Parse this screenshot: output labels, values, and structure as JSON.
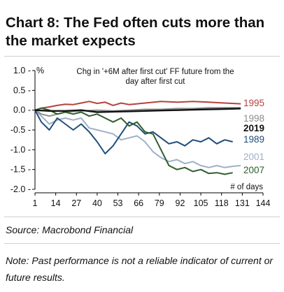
{
  "title": "Chart 8: The Fed often cuts more than the market expects",
  "source": "Source: Macrobond Financial",
  "note": "Note: Past performance is not a reliable indicator of current or future results.",
  "chart_data": {
    "type": "line",
    "ylabel": "%",
    "annotation": "Chg in '+6M after first cut' FF future from the day after first cut",
    "xlabel": "# of days",
    "x_ticks": [
      1,
      14,
      27,
      40,
      53,
      66,
      79,
      92,
      105,
      118,
      131,
      144
    ],
    "y_ticks": [
      1.0,
      0.5,
      0.0,
      -0.5,
      -1.0,
      -1.5,
      -2.0
    ],
    "xlim": [
      1,
      144
    ],
    "ylim": [
      -2.0,
      1.0
    ],
    "grid": false,
    "legend": "labels at line ends (right)",
    "series": [
      {
        "name": "1995",
        "color": "#b5413c",
        "x": [
          1,
          5,
          10,
          15,
          20,
          25,
          30,
          35,
          40,
          45,
          50,
          55,
          60,
          70,
          80,
          90,
          100,
          110,
          120,
          130
        ],
        "y": [
          0.0,
          0.05,
          0.08,
          0.12,
          0.15,
          0.14,
          0.18,
          0.22,
          0.17,
          0.2,
          0.12,
          0.18,
          0.14,
          0.18,
          0.22,
          0.2,
          0.22,
          0.2,
          0.18,
          0.16
        ]
      },
      {
        "name": "1998",
        "color": "#8c8c8c",
        "x": [
          1,
          5,
          10,
          15,
          20,
          30,
          40,
          50,
          60,
          70,
          80,
          90,
          100,
          110,
          120,
          130
        ],
        "y": [
          0.0,
          -0.1,
          -0.15,
          -0.1,
          -0.05,
          -0.02,
          0.0,
          -0.02,
          0.0,
          0.02,
          0.02,
          0.04,
          0.04,
          0.06,
          0.06,
          0.06
        ]
      },
      {
        "name": "2019",
        "color": "#111111",
        "x": [
          1,
          10,
          20,
          30,
          40,
          50,
          60,
          70,
          80,
          90,
          100,
          110,
          120,
          130
        ],
        "y": [
          0.0,
          -0.02,
          -0.02,
          0.0,
          -0.05,
          -0.04,
          -0.03,
          -0.02,
          -0.01,
          0.0,
          0.01,
          0.02,
          0.03,
          0.04
        ]
      },
      {
        "name": "1989",
        "color": "#1f4e79",
        "x": [
          1,
          5,
          10,
          15,
          20,
          25,
          30,
          35,
          40,
          45,
          50,
          55,
          60,
          65,
          70,
          75,
          80,
          85,
          90,
          95,
          100,
          105,
          110,
          115,
          120,
          125
        ],
        "y": [
          0.0,
          -0.3,
          -0.5,
          -0.2,
          -0.35,
          -0.5,
          -0.35,
          -0.55,
          -0.8,
          -1.1,
          -0.9,
          -0.6,
          -0.3,
          -0.4,
          -0.6,
          -0.55,
          -0.7,
          -0.85,
          -0.8,
          -0.9,
          -0.75,
          -0.8,
          -0.7,
          -0.85,
          -0.75,
          -0.8
        ]
      },
      {
        "name": "2001",
        "color": "#9fb0c8",
        "x": [
          1,
          5,
          10,
          15,
          20,
          25,
          30,
          35,
          40,
          45,
          50,
          55,
          60,
          65,
          70,
          75,
          80,
          85,
          90,
          95,
          100,
          105,
          110,
          115,
          120,
          125,
          130
        ],
        "y": [
          0.0,
          -0.15,
          -0.35,
          -0.25,
          -0.2,
          -0.25,
          -0.2,
          -0.45,
          -0.5,
          -0.55,
          -0.6,
          -0.75,
          -0.7,
          -0.65,
          -0.8,
          -1.05,
          -1.2,
          -1.3,
          -1.25,
          -1.35,
          -1.3,
          -1.4,
          -1.45,
          -1.4,
          -1.45,
          -1.42,
          -1.4
        ]
      },
      {
        "name": "2007",
        "color": "#2f5e2e",
        "x": [
          1,
          5,
          10,
          15,
          20,
          25,
          30,
          35,
          40,
          45,
          50,
          55,
          60,
          65,
          70,
          75,
          80,
          85,
          90,
          95,
          100,
          105,
          110,
          115,
          120,
          125
        ],
        "y": [
          0.0,
          0.05,
          0.0,
          -0.1,
          -0.05,
          -0.1,
          -0.05,
          -0.15,
          -0.1,
          -0.2,
          -0.3,
          -0.2,
          -0.4,
          -0.3,
          -0.55,
          -0.6,
          -1.0,
          -1.4,
          -1.5,
          -1.45,
          -1.55,
          -1.5,
          -1.6,
          -1.58,
          -1.62,
          -1.58
        ]
      }
    ]
  }
}
